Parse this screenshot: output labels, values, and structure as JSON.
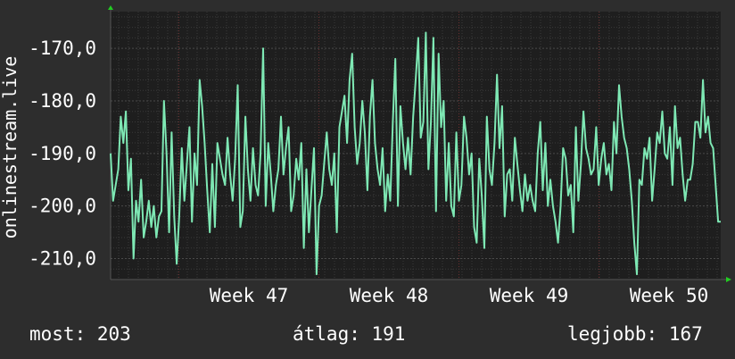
{
  "colors": {
    "background": "#2d2d2d",
    "plot_background": "#1e1e1e",
    "line": "#7ee8b4",
    "grid_major": "#3a3a3a",
    "grid_minor_vertical": "#6a3030",
    "axis_arrow": "#22cc22",
    "text": "#ffffff"
  },
  "stats": {
    "now_label": "most:",
    "now_value": "203",
    "avg_label": "átlag:",
    "avg_value": "191",
    "best_label": "legjobb:",
    "best_value": "167"
  },
  "chart_data": {
    "type": "line",
    "ylabel": "onlinestream.live",
    "y_ticks": [
      -170,
      -180,
      -190,
      -200,
      -210
    ],
    "y_tick_labels": [
      "-170,0",
      "-180,0",
      "-190,0",
      "-200,0",
      "-210,0"
    ],
    "ylim": [
      -214,
      -163
    ],
    "x_ticks": [
      "Week 47",
      "Week 48",
      "Week 49",
      "Week 50"
    ],
    "grid": true,
    "series": [
      {
        "values": [
          -190,
          -199,
          -196,
          -193,
          -183,
          -188,
          -182,
          -197,
          -191,
          -210,
          -199,
          -203,
          -195,
          -206,
          -203,
          -199,
          -204,
          -200,
          -206,
          -202,
          -201,
          -180,
          -190,
          -205,
          -186,
          -202,
          -211,
          -202,
          -189,
          -199,
          -192,
          -185,
          -203,
          -190,
          -196,
          -176,
          -181,
          -188,
          -197,
          -205,
          -192,
          -204,
          -188,
          -191,
          -194,
          -196,
          -187,
          -194,
          -199,
          -191,
          -177,
          -204,
          -201,
          -183,
          -193,
          -199,
          -189,
          -196,
          -198,
          -190,
          -170,
          -200,
          -188,
          -194,
          -201,
          -196,
          -193,
          -183,
          -194,
          -189,
          -185,
          -201,
          -198,
          -191,
          -195,
          -188,
          -208,
          -193,
          -205,
          -197,
          -189,
          -213,
          -200,
          -198,
          -192,
          -186,
          -193,
          -196,
          -190,
          -205,
          -185,
          -182,
          -179,
          -188,
          -176,
          -171,
          -185,
          -192,
          -188,
          -180,
          -186,
          -197,
          -183,
          -176,
          -188,
          -193,
          -196,
          -189,
          -201,
          -194,
          -199,
          -184,
          -172,
          -200,
          -181,
          -188,
          -193,
          -187,
          -194,
          -183,
          -176,
          -168,
          -187,
          -184,
          -167,
          -193,
          -184,
          -168,
          -201,
          -171,
          -185,
          -180,
          -199,
          -188,
          -200,
          -202,
          -186,
          -199,
          -196,
          -183,
          -187,
          -194,
          -190,
          -204,
          -207,
          -191,
          -198,
          -208,
          -183,
          -193,
          -196,
          -188,
          -175,
          -189,
          -181,
          -202,
          -194,
          -193,
          -199,
          -187,
          -192,
          -197,
          -201,
          -194,
          -199,
          -196,
          -199,
          -201,
          -190,
          -184,
          -197,
          -188,
          -200,
          -195,
          -200,
          -203,
          -207,
          -200,
          -189,
          -191,
          -198,
          -196,
          -205,
          -185,
          -199,
          -192,
          -182,
          -189,
          -191,
          -194,
          -193,
          -185,
          -196,
          -191,
          -188,
          -194,
          -192,
          -197,
          -184,
          -190,
          -177,
          -183,
          -187,
          -189,
          -193,
          -199,
          -207,
          -213,
          -195,
          -196,
          -189,
          -191,
          -187,
          -199,
          -193,
          -186,
          -188,
          -182,
          -190,
          -191,
          -185,
          -196,
          -181,
          -189,
          -187,
          -194,
          -199,
          -195,
          -195,
          -192,
          -184,
          -184,
          -187,
          -176,
          -186,
          -183,
          -188,
          -189,
          -196,
          -203,
          -203
        ]
      }
    ]
  }
}
